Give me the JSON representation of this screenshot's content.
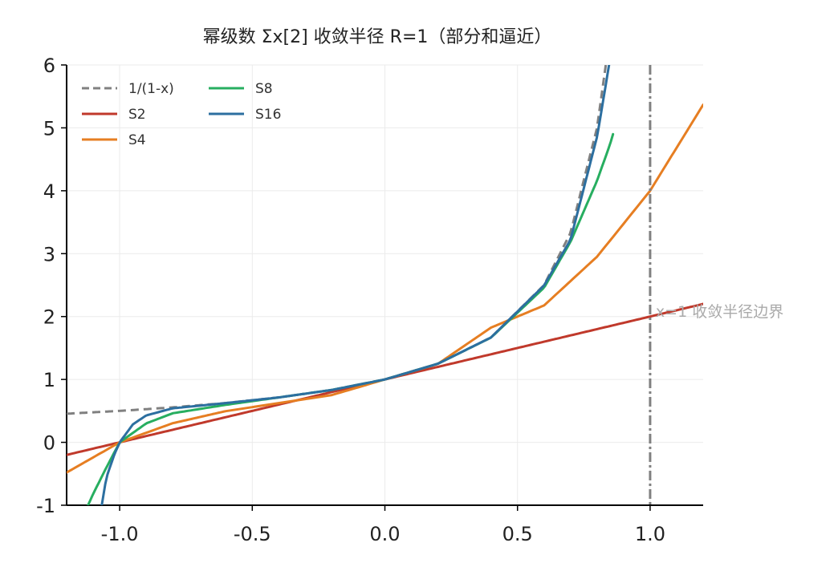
{
  "chart_data": {
    "type": "line",
    "title": "幂级数 Σx[2] 收敛半径 R=1（部分和逼近）",
    "xlim": [
      -1.2,
      1.2
    ],
    "ylim": [
      -1,
      6
    ],
    "x_ticks": [
      -1.0,
      -0.5,
      0.0,
      0.5,
      1.0
    ],
    "x_tick_labels": [
      "-1.0",
      "-0.5",
      "0.0",
      "0.5",
      "1.0"
    ],
    "y_ticks": [
      -1,
      0,
      1,
      2,
      3,
      4,
      5,
      6
    ],
    "y_tick_labels": [
      "-1",
      "0",
      "1",
      "2",
      "3",
      "4",
      "5",
      "6"
    ],
    "grid": true,
    "legend_position": "top-left",
    "series": [
      {
        "name": "1/(1-x)",
        "color": "#808080",
        "style": "dashed",
        "x": [
          -1.2,
          -1.0,
          -0.8,
          -0.6,
          -0.4,
          -0.2,
          0.0,
          0.2,
          0.4,
          0.6,
          0.7,
          0.8,
          0.833
        ],
        "y": [
          0.455,
          0.5,
          0.556,
          0.625,
          0.714,
          0.833,
          1.0,
          1.25,
          1.667,
          2.5,
          3.333,
          5.0,
          6.0
        ]
      },
      {
        "name": "S2",
        "color": "#c0392b",
        "style": "solid",
        "x": [
          -1.2,
          -1.0,
          -0.5,
          0.0,
          0.5,
          1.0,
          1.2
        ],
        "y": [
          -0.2,
          0.0,
          0.5,
          1.0,
          1.5,
          2.0,
          2.2
        ]
      },
      {
        "name": "S4",
        "color": "#e67e22",
        "style": "solid",
        "x": [
          -1.2,
          -1.0,
          -0.8,
          -0.6,
          -0.4,
          -0.2,
          0.0,
          0.2,
          0.4,
          0.6,
          0.8,
          1.0,
          1.2
        ],
        "y": [
          -0.48,
          0.0,
          0.304,
          0.496,
          0.624,
          0.752,
          1.0,
          1.248,
          1.824,
          2.176,
          2.952,
          4.0,
          5.368
        ]
      },
      {
        "name": "S8",
        "color": "#27ae60",
        "style": "solid",
        "x": [
          -1.12,
          -1.1,
          -1.05,
          -1.0,
          -0.9,
          -0.8,
          -0.6,
          -0.4,
          -0.2,
          0.0,
          0.2,
          0.4,
          0.6,
          0.7,
          0.8,
          0.85,
          0.86
        ],
        "y": [
          -1.007,
          -0.82,
          -0.4,
          0.0,
          0.301,
          0.462,
          0.596,
          0.714,
          0.833,
          1.0,
          1.25,
          1.665,
          2.458,
          3.189,
          4.161,
          4.752,
          4.9
        ]
      },
      {
        "name": "S16",
        "color": "#2c6fa0",
        "style": "solid",
        "x": [
          -1.07,
          -1.05,
          -1.02,
          -1.0,
          -0.95,
          -0.9,
          -0.8,
          -0.6,
          -0.4,
          -0.2,
          0.0,
          0.2,
          0.4,
          0.6,
          0.7,
          0.8,
          0.82,
          0.84,
          0.847
        ],
        "y": [
          -1.06,
          -0.559,
          -0.192,
          0.0,
          0.286,
          0.428,
          0.541,
          0.624,
          0.714,
          0.833,
          1.0,
          1.25,
          1.667,
          2.493,
          3.223,
          4.859,
          5.356,
          5.868,
          6.05
        ]
      }
    ],
    "vline": {
      "x": 1.0,
      "color": "#808080",
      "style": "dashdot",
      "label": "x=1 收敛半径边界",
      "label_y": 2.1
    }
  }
}
